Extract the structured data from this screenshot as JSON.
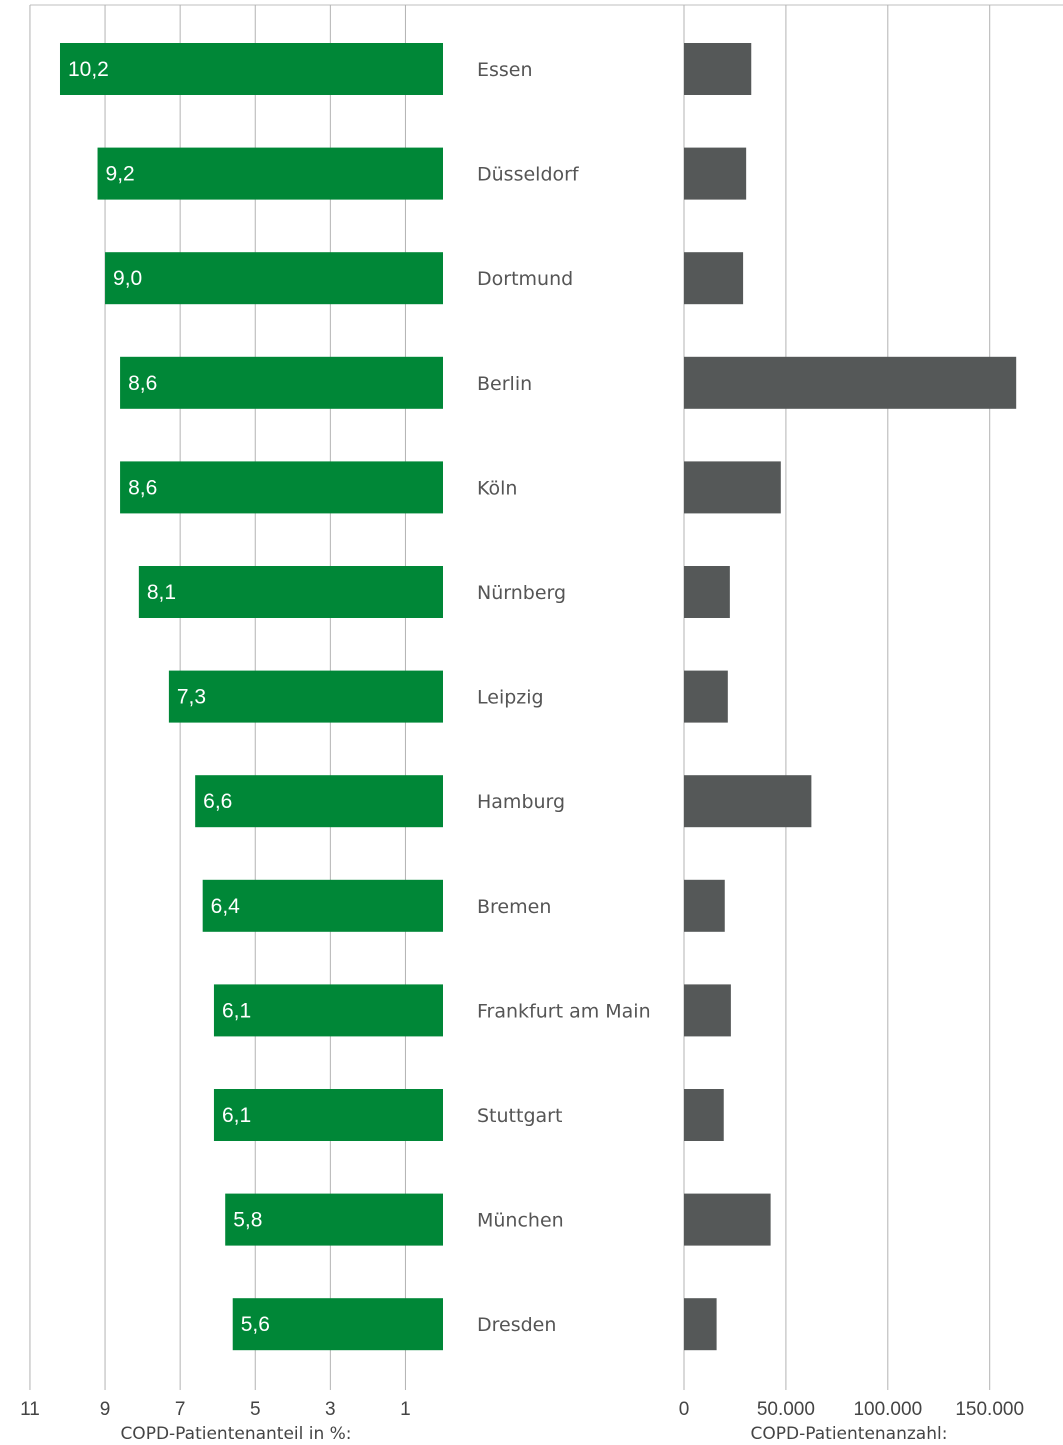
{
  "chart_data": [
    {
      "type": "bar",
      "orientation": "horizontal",
      "direction": "right-to-left",
      "categories": [
        "Essen",
        "Düsseldorf",
        "Dortmund",
        "Berlin",
        "Köln",
        "Nürnberg",
        "Leipzig",
        "Hamburg",
        "Bremen",
        "Frankfurt am Main",
        "Stuttgart",
        "München",
        "Dresden"
      ],
      "values": [
        10.2,
        9.2,
        9.0,
        8.6,
        8.6,
        8.1,
        7.3,
        6.6,
        6.4,
        6.1,
        6.1,
        5.8,
        5.6
      ],
      "value_labels": [
        "10,2",
        "9,2",
        "9,0",
        "8,6",
        "8,6",
        "8,1",
        "7,3",
        "6,6",
        "6,4",
        "6,1",
        "6,1",
        "5,8",
        "5,6"
      ],
      "xlim": [
        0,
        11
      ],
      "ticks": [
        11,
        9,
        7,
        5,
        3,
        1
      ],
      "tick_labels": [
        "11",
        "9",
        "7",
        "5",
        "3",
        "1"
      ],
      "xlabel": "COPD-Patientenanteil in %:",
      "color": "#008737",
      "grid": true
    },
    {
      "type": "bar",
      "orientation": "horizontal",
      "categories": [
        "Essen",
        "Düsseldorf",
        "Dortmund",
        "Berlin",
        "Köln",
        "Nürnberg",
        "Leipzig",
        "Hamburg",
        "Bremen",
        "Frankfurt am Main",
        "Stuttgart",
        "München",
        "Dresden"
      ],
      "values": [
        33000,
        30500,
        29000,
        163000,
        47500,
        22500,
        21500,
        62500,
        20000,
        23000,
        19500,
        42500,
        16000
      ],
      "xlim": [
        0,
        162000
      ],
      "ticks": [
        0,
        50000,
        100000,
        150000
      ],
      "tick_labels": [
        "0",
        "50.000",
        "100.000",
        "150.000"
      ],
      "xlabel": "COPD-Patientenanzahl:",
      "color": "#555858",
      "grid": true
    }
  ]
}
